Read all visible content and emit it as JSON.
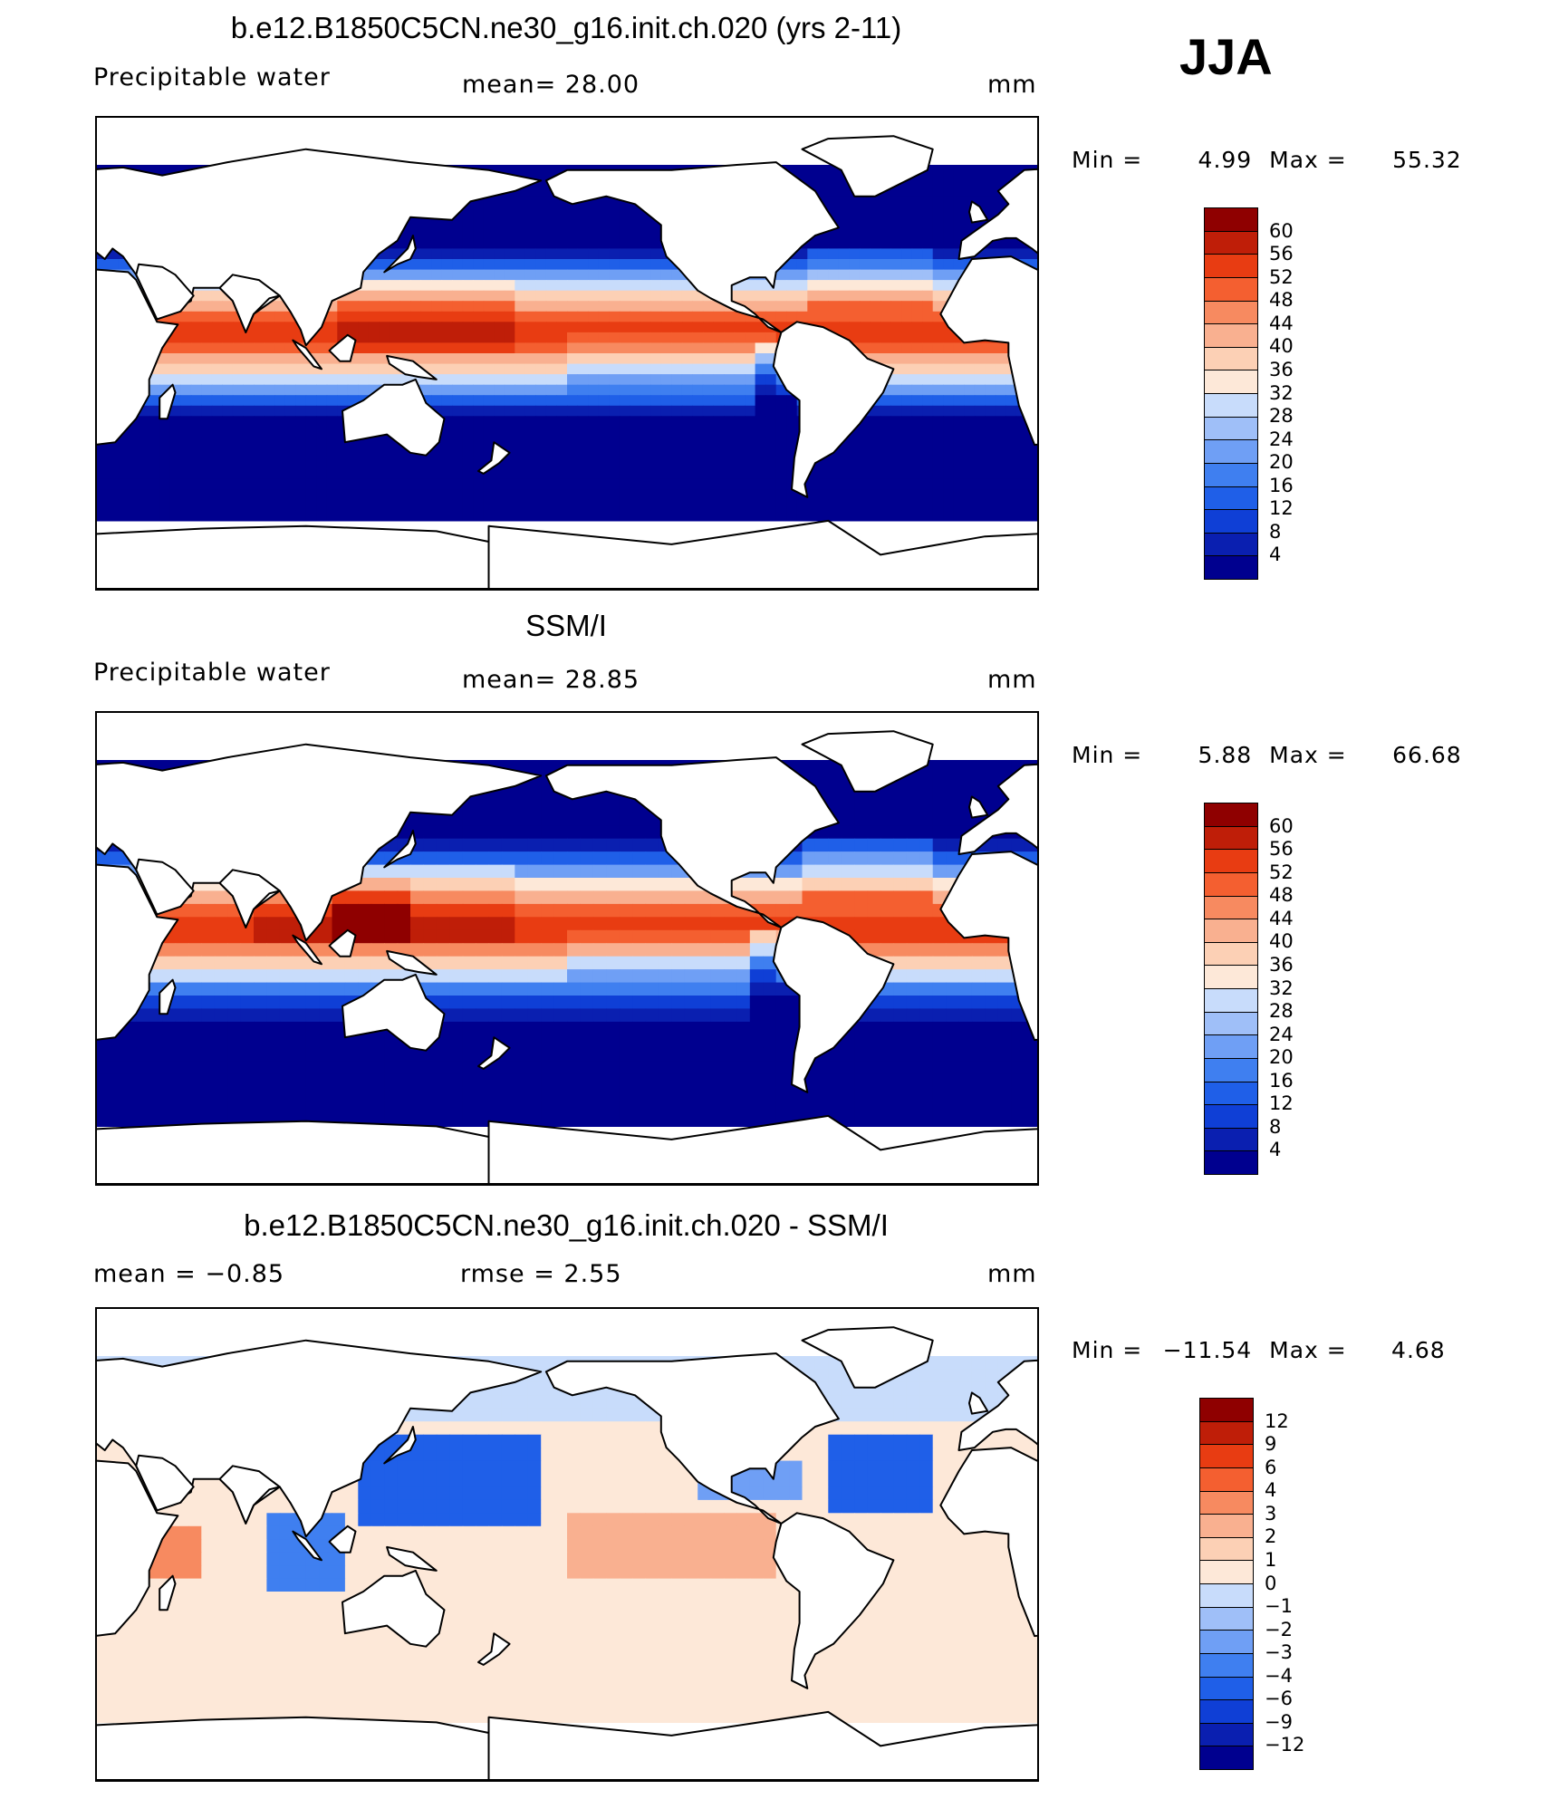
{
  "season": "JJA",
  "panels": [
    {
      "title": "b.e12.B1850C5CN.ne30_g16.init.ch.020 (yrs 2-11)",
      "left_label": "Precipitable  water",
      "center_label": "mean=   28.00",
      "units": "mm",
      "min_label": "Min  =",
      "min_value": "4.99",
      "max_label": "Max  =",
      "max_value": "55.32",
      "colorbar": [
        "60",
        "56",
        "52",
        "48",
        "44",
        "40",
        "36",
        "32",
        "28",
        "24",
        "20",
        "16",
        "12",
        "8",
        "4"
      ],
      "field": "model"
    },
    {
      "title": "SSM/I",
      "left_label": "Precipitable  water",
      "center_label": "mean=   28.85",
      "units": "mm",
      "min_label": "Min  =",
      "min_value": "5.88",
      "max_label": "Max  =",
      "max_value": "66.68",
      "colorbar": [
        "60",
        "56",
        "52",
        "48",
        "44",
        "40",
        "36",
        "32",
        "28",
        "24",
        "20",
        "16",
        "12",
        "8",
        "4"
      ],
      "field": "obs"
    },
    {
      "title": "b.e12.B1850C5CN.ne30_g16.init.ch.020 - SSM/I",
      "left_label": "mean  =    −0.85",
      "center_label": "rmse  =     2.55",
      "units": "mm",
      "min_label": "Min  =",
      "min_value": "−11.54",
      "max_label": "Max  =",
      "max_value": "4.68",
      "colorbar": [
        "12",
        "9",
        "6",
        "4",
        "3",
        "2",
        "1",
        "0",
        "−1",
        "−2",
        "−3",
        "−4",
        "−6",
        "−9",
        "−12"
      ],
      "field": "diff"
    }
  ],
  "colors": {
    "scale": [
      "#00008f",
      "#0a1fb0",
      "#0f3fd6",
      "#1f5fe8",
      "#3f7ff0",
      "#6f9ff5",
      "#9fbff8",
      "#c8dcfb",
      "#fde8d8",
      "#fcd0b5",
      "#f9b090",
      "#f78a60",
      "#f45f30",
      "#e83c12",
      "#bf1e08",
      "#8f0000"
    ],
    "land": "#ffffff",
    "outline": "#000000"
  }
}
